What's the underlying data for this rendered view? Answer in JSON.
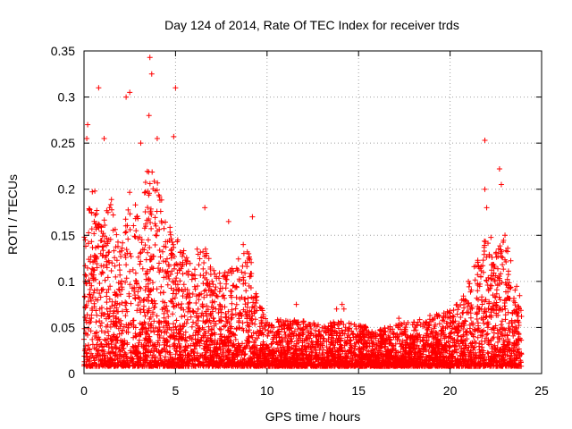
{
  "chart_data": {
    "type": "scatter",
    "title": "Day 124 of 2014, Rate Of TEC Index for receiver trds",
    "xlabel": "GPS time / hours",
    "ylabel": "ROTI / TECUs",
    "xlim": [
      0,
      25
    ],
    "ylim": [
      0,
      0.35
    ],
    "xticks": [
      0,
      5,
      10,
      15,
      20,
      25
    ],
    "yticks": [
      0,
      0.05,
      0.1,
      0.15,
      0.2,
      0.25,
      0.3,
      0.35
    ],
    "grid": true,
    "marker": "+",
    "series": [
      {
        "color": "#ff0000",
        "x_range": [
          0,
          23.9
        ],
        "outliers": [
          [
            0.8,
            0.31
          ],
          [
            2.5,
            0.305
          ],
          [
            2.3,
            0.3
          ],
          [
            3.6,
            0.343
          ],
          [
            3.7,
            0.325
          ],
          [
            3.55,
            0.28
          ],
          [
            4.0,
            0.255
          ],
          [
            5.0,
            0.31
          ],
          [
            4.9,
            0.257
          ],
          [
            3.1,
            0.25
          ],
          [
            0.2,
            0.27
          ],
          [
            0.15,
            0.255
          ],
          [
            1.1,
            0.255
          ],
          [
            21.9,
            0.253
          ],
          [
            22.7,
            0.222
          ],
          [
            22.8,
            0.205
          ],
          [
            21.9,
            0.2
          ],
          [
            22.0,
            0.18
          ],
          [
            23.0,
            0.15
          ],
          [
            9.2,
            0.17
          ],
          [
            7.9,
            0.165
          ],
          [
            6.6,
            0.18
          ],
          [
            8.7,
            0.14
          ],
          [
            11.6,
            0.075
          ],
          [
            14.1,
            0.075
          ],
          [
            14.2,
            0.07
          ],
          [
            20.0,
            0.068
          ],
          [
            19.3,
            0.063
          ],
          [
            18.9,
            0.063
          ],
          [
            13.8,
            0.07
          ],
          [
            17.2,
            0.06
          ],
          [
            22.5,
            0.13
          ],
          [
            21.0,
            0.1
          ]
        ]
      }
    ]
  }
}
